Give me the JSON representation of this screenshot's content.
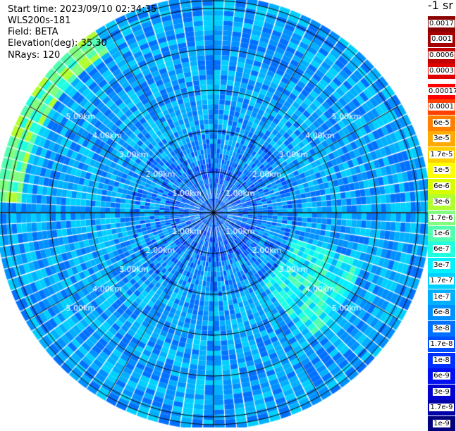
{
  "header": {
    "start_time": "Start time: 2023/09/10 02:34:35",
    "instrument": "WLS200s-181",
    "field": "Field: BETA",
    "elevation": "Elevation(deg): 35.30",
    "nrays": "NRays: 120"
  },
  "colorbar": {
    "unit": "-1 sr",
    "levels": [
      {
        "label": "0.0017",
        "color": "#8b0000"
      },
      {
        "label": "0.001",
        "color": "#a40000"
      },
      {
        "label": "0.0006",
        "color": "#c00000"
      },
      {
        "label": "0.0003",
        "color": "#e00000"
      },
      {
        "label": "0.00017",
        "color": "#ff0000"
      },
      {
        "label": "0.0001",
        "color": "#ff4000"
      },
      {
        "label": "6e-5",
        "color": "#ff7f00"
      },
      {
        "label": "3e-5",
        "color": "#ffaa00"
      },
      {
        "label": "1.7e-5",
        "color": "#ffd000"
      },
      {
        "label": "1e-5",
        "color": "#ffff00"
      },
      {
        "label": "6e-6",
        "color": "#d8ff00"
      },
      {
        "label": "3e-6",
        "color": "#b0ff30"
      },
      {
        "label": "1.7e-6",
        "color": "#80ff80"
      },
      {
        "label": "1e-6",
        "color": "#50ffb0"
      },
      {
        "label": "6e-7",
        "color": "#20ffe0"
      },
      {
        "label": "3e-7",
        "color": "#00f0ff"
      },
      {
        "label": "1.7e-7",
        "color": "#00d0ff"
      },
      {
        "label": "1e-7",
        "color": "#00b0ff"
      },
      {
        "label": "6e-8",
        "color": "#0090ff"
      },
      {
        "label": "3e-8",
        "color": "#0070ff"
      },
      {
        "label": "1.7e-8",
        "color": "#0050ff"
      },
      {
        "label": "1e-8",
        "color": "#0030ff"
      },
      {
        "label": "6e-9",
        "color": "#0010f0"
      },
      {
        "label": "3e-9",
        "color": "#0000d0"
      },
      {
        "label": "1.7e-9",
        "color": "#0000a8"
      },
      {
        "label": "1e-9",
        "color": "#00007f"
      }
    ]
  },
  "range_rings": [
    "1.00km",
    "2.00km",
    "3.00km",
    "4.00km",
    "5.00km"
  ]
}
